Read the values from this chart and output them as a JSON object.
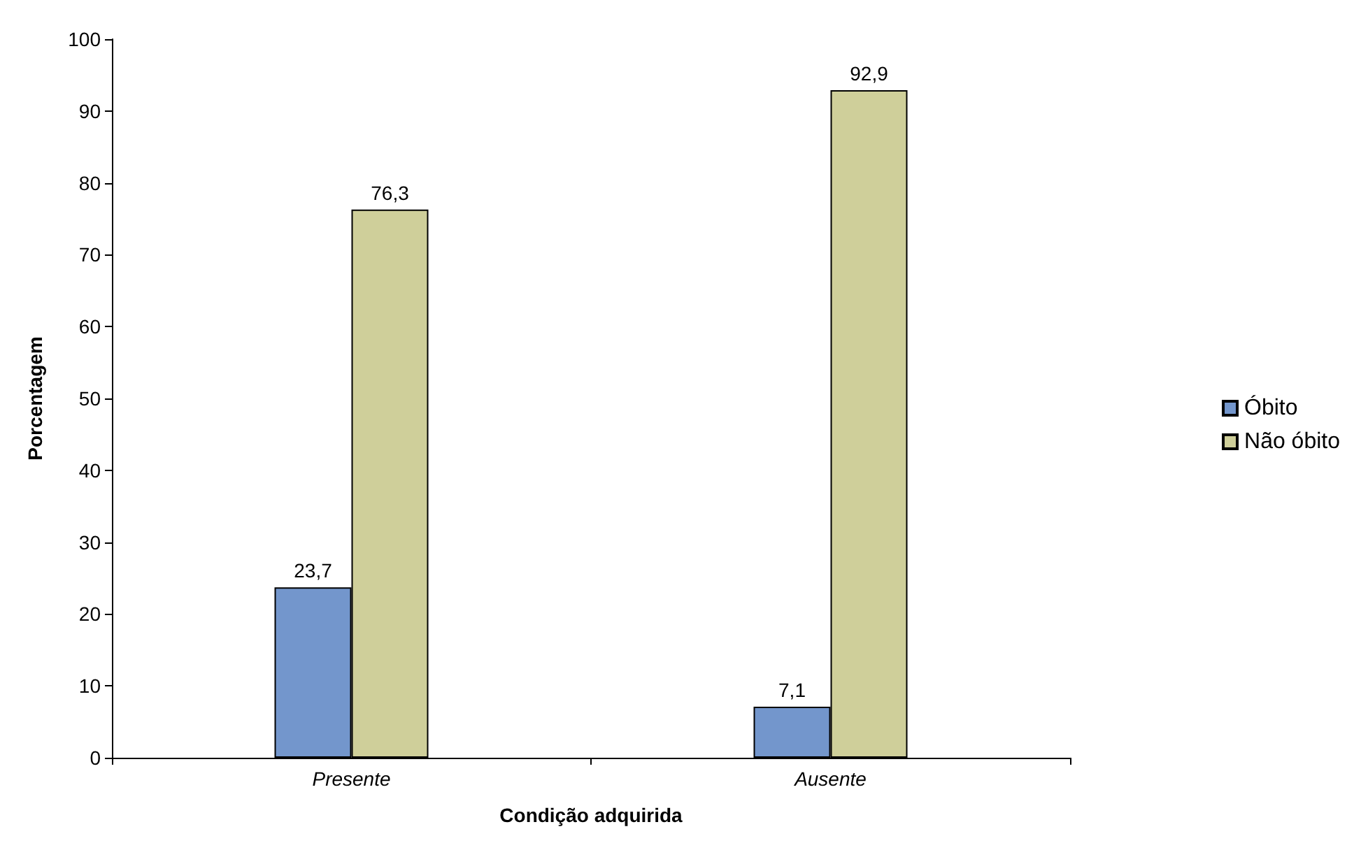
{
  "chart_data": {
    "type": "bar",
    "xlabel": "Condição adquirida",
    "ylabel": "Porcentagem",
    "categories": [
      "Presente",
      "Ausente"
    ],
    "series": [
      {
        "name": "Óbito",
        "color": "#7396cc",
        "values": [
          23.7,
          7.1
        ],
        "value_labels": [
          "23,7",
          "7,1"
        ]
      },
      {
        "name": "Não óbito",
        "color": "#cfcf9a",
        "values": [
          76.3,
          92.9
        ],
        "value_labels": [
          "76,3",
          "92,9"
        ]
      }
    ],
    "ylim": [
      0,
      100
    ],
    "yticks": [
      0,
      10,
      20,
      30,
      40,
      50,
      60,
      70,
      80,
      90,
      100
    ],
    "grid": false,
    "legend": "right"
  }
}
